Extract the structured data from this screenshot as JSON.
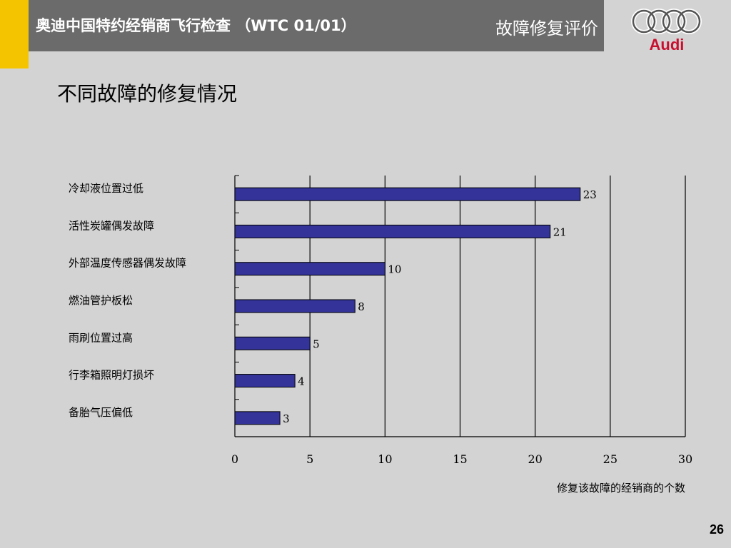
{
  "header": {
    "title": "奥迪中国特约经销商飞行检查 （WTC 01/01）",
    "section": "故障修复评价",
    "logo_text": "Audi"
  },
  "page_title": "不同故障的修复情况",
  "page_number": "26",
  "colors": {
    "bar": "#333399",
    "header_bg": "#6b6b6b",
    "accent": "#f5c400",
    "logo": "#c8102e"
  },
  "chart_data": {
    "type": "bar",
    "orientation": "horizontal",
    "categories": [
      "冷却液位置过低",
      "活性炭罐偶发故障",
      "外部温度传感器偶发故障",
      "燃油管护板松",
      "雨刷位置过高",
      "行李箱照明灯损坏",
      "备胎气压偏低"
    ],
    "values": [
      23,
      21,
      10,
      8,
      5,
      4,
      3
    ],
    "xlabel": "修复该故障的经销商的个数",
    "xlim": [
      0,
      30
    ],
    "xticks": [
      "0",
      "5",
      "10",
      "15",
      "20",
      "25",
      "30"
    ],
    "grid": "vertical"
  }
}
